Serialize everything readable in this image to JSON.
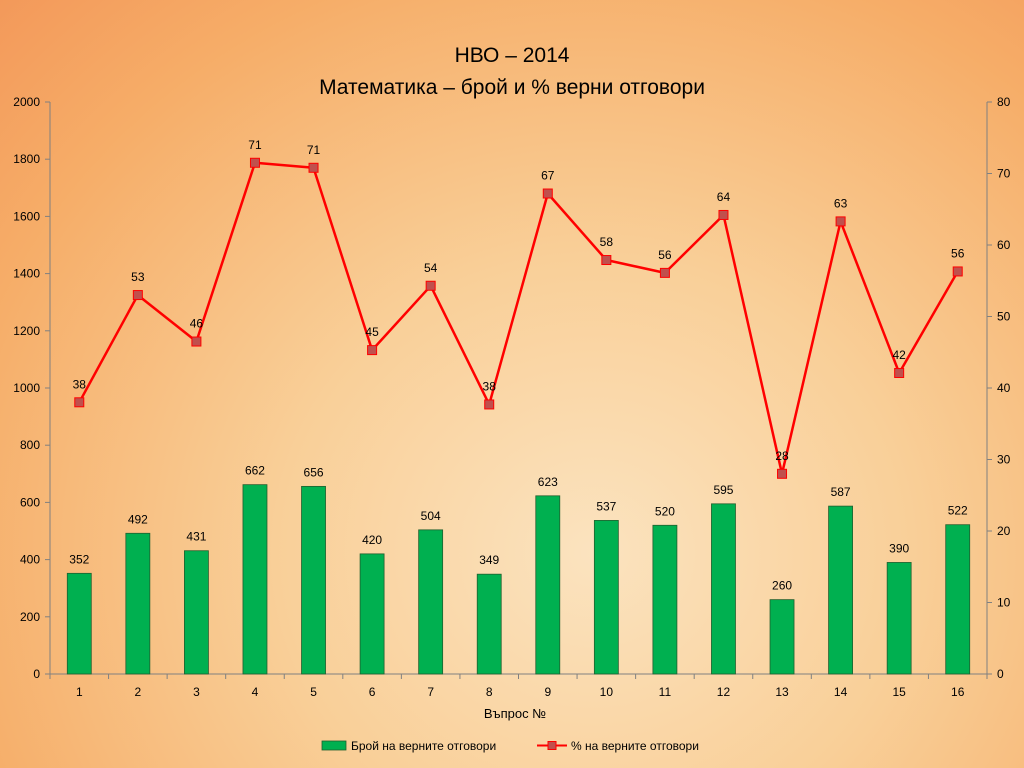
{
  "chart_data": {
    "type": "bar+line",
    "title": "НВО – 2014",
    "subtitle": "Математика – брой и % верни отговори",
    "xlabel": "Въпрос №",
    "categories": [
      "1",
      "2",
      "3",
      "4",
      "5",
      "6",
      "7",
      "8",
      "9",
      "10",
      "11",
      "12",
      "13",
      "14",
      "15",
      "16"
    ],
    "series": [
      {
        "name": "Брой на верните отговори",
        "type": "bar",
        "axis": "left",
        "color": "#00b050",
        "values": [
          352,
          492,
          431,
          662,
          656,
          420,
          504,
          349,
          623,
          537,
          520,
          595,
          260,
          587,
          390,
          522
        ]
      },
      {
        "name": "% на верните отговори",
        "type": "line",
        "axis": "right",
        "color": "#ff0000",
        "marker_color": "#c0504d",
        "values": [
          38,
          53,
          46,
          71,
          71,
          45,
          54,
          38,
          67,
          58,
          56,
          64,
          28,
          63,
          42,
          56
        ],
        "plot_values": [
          38,
          53,
          46.5,
          71.5,
          70.8,
          45.3,
          54.3,
          37.7,
          67.2,
          57.9,
          56.1,
          64.2,
          28,
          63.3,
          42.1,
          56.3
        ]
      }
    ],
    "ylim_left": [
      0,
      2000
    ],
    "yticks_left": [
      0,
      200,
      400,
      600,
      800,
      1000,
      1200,
      1400,
      1600,
      1800,
      2000
    ],
    "ylim_right": [
      0,
      80
    ],
    "yticks_right": [
      0,
      10,
      20,
      30,
      40,
      50,
      60,
      70,
      80
    ],
    "grid": false,
    "legend_position": "bottom"
  }
}
